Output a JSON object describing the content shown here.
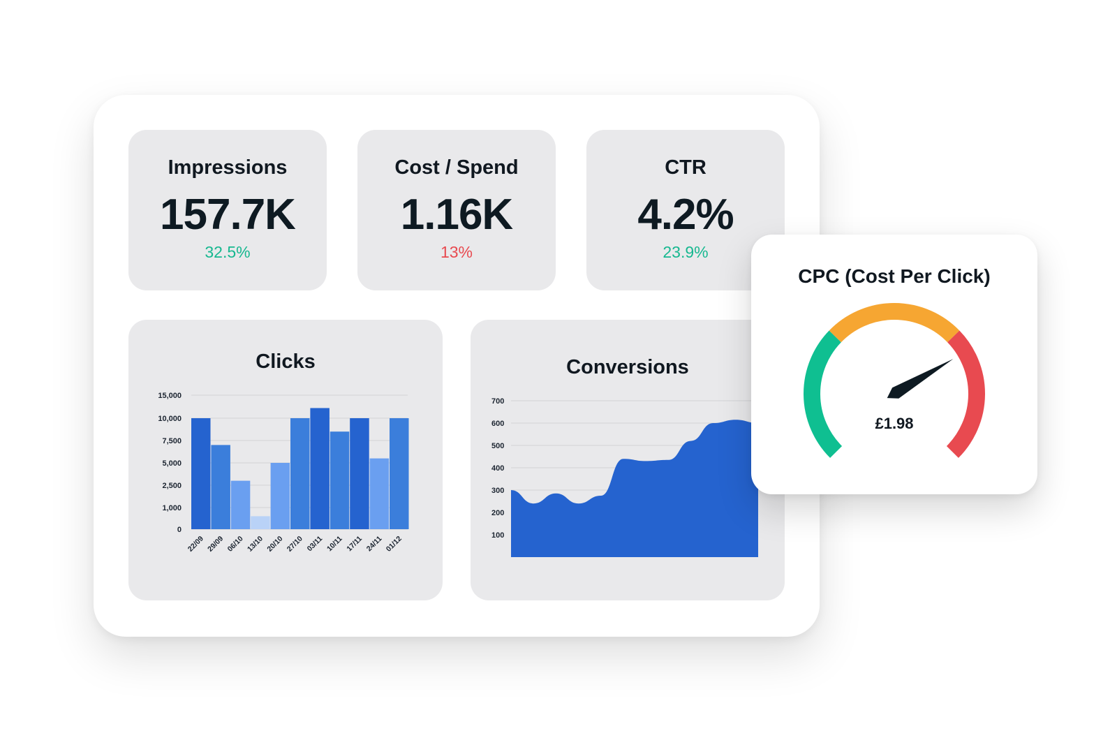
{
  "colors": {
    "positive": "#17b890",
    "negative": "#e84a50",
    "bar_dark": "#2563cf",
    "bar_mid": "#3b7edb",
    "bar_light": "#6a9ff0",
    "bar_pale": "#b9d2f7",
    "area": "#2563cf",
    "gauge_green": "#0fbf91",
    "gauge_orange": "#f6a632",
    "gauge_red": "#e84a50",
    "needle": "#0e1a22"
  },
  "kpis": [
    {
      "title": "Impressions",
      "value": "157.7K",
      "change": "32.5%",
      "trend": "positive"
    },
    {
      "title": "Cost / Spend",
      "value": "1.16K",
      "change": "13%",
      "trend": "negative"
    },
    {
      "title": "CTR",
      "value": "4.2%",
      "change": "23.9%",
      "trend": "positive"
    }
  ],
  "chart_data": [
    {
      "type": "bar",
      "title": "Clicks",
      "categories": [
        "22/09",
        "29/09",
        "06/10",
        "13/10",
        "20/10",
        "27/10",
        "03/11",
        "10/11",
        "17/11",
        "24/11",
        "01/12"
      ],
      "values": [
        10000,
        7000,
        3000,
        600,
        5000,
        10000,
        12200,
        8500,
        10000,
        5500,
        10000
      ],
      "shades": [
        "dark",
        "mid",
        "light",
        "pale",
        "light",
        "mid",
        "dark",
        "mid",
        "dark",
        "light",
        "mid"
      ],
      "y_ticks": [
        "15,000",
        "10,000",
        "7,500",
        "5,000",
        "2,500",
        "1,000",
        "0"
      ],
      "grid": true
    },
    {
      "type": "area",
      "title": "Conversions",
      "x": [
        0,
        1,
        2,
        3,
        4,
        5,
        6,
        7,
        8,
        9,
        10,
        11
      ],
      "values": [
        300,
        240,
        285,
        240,
        275,
        440,
        430,
        435,
        520,
        600,
        615,
        600
      ],
      "y_ticks": [
        "700",
        "600",
        "500",
        "400",
        "300",
        "200",
        "100"
      ],
      "ylim": [
        0,
        700
      ],
      "grid": true
    },
    {
      "type": "gauge",
      "title": "CPC (Cost Per Click)",
      "value_label": "£1.98",
      "needle_fraction": 0.72,
      "segments": [
        {
          "color": "green",
          "fraction": 0.33
        },
        {
          "color": "orange",
          "fraction": 0.34
        },
        {
          "color": "red",
          "fraction": 0.33
        }
      ]
    }
  ]
}
